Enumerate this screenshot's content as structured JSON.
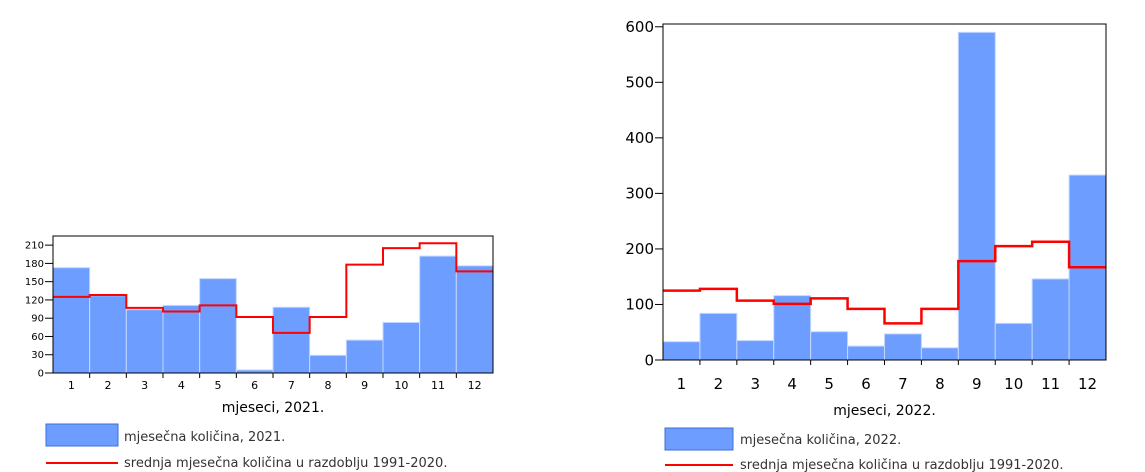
{
  "chart_data": [
    {
      "type": "bar",
      "categories": [
        "1",
        "2",
        "3",
        "4",
        "5",
        "6",
        "7",
        "8",
        "9",
        "10",
        "11",
        "12"
      ],
      "series": [
        {
          "name": "mjesečna količina, 2021.",
          "kind": "bar",
          "values": [
            173,
            127,
            104,
            111,
            155,
            5,
            108,
            29,
            54,
            83,
            192,
            176
          ]
        },
        {
          "name": "srednja mjesečna količina u razdoblju 1991-2020.",
          "kind": "step-line",
          "values": [
            125,
            128,
            107,
            101,
            111,
            92,
            66,
            92,
            178,
            205,
            213,
            167
          ]
        }
      ],
      "xlabel": "mjeseci, 2021.",
      "ylabel": "",
      "ylim": [
        0,
        225
      ],
      "yticks": [
        0,
        30,
        60,
        90,
        120,
        150,
        180,
        210
      ],
      "colors": {
        "bar": "#6d9eff",
        "bar_edge": "#c4d7ff",
        "line": "#ff0000"
      }
    },
    {
      "type": "bar",
      "categories": [
        "1",
        "2",
        "3",
        "4",
        "5",
        "6",
        "7",
        "8",
        "9",
        "10",
        "11",
        "12"
      ],
      "series": [
        {
          "name": "mjesečna količina, 2022.",
          "kind": "bar",
          "values": [
            33,
            84,
            35,
            116,
            51,
            25,
            47,
            22,
            590,
            66,
            146,
            333
          ]
        },
        {
          "name": "srednja mjesečna količina u razdoblju 1991-2020.",
          "kind": "step-line",
          "values": [
            125,
            128,
            107,
            101,
            111,
            92,
            66,
            92,
            178,
            205,
            213,
            167
          ]
        }
      ],
      "xlabel": "mjeseci, 2022.",
      "ylabel": "",
      "ylim": [
        0,
        605
      ],
      "yticks": [
        0,
        100,
        200,
        300,
        400,
        500,
        600
      ],
      "colors": {
        "bar": "#6d9eff",
        "bar_edge": "#c4d7ff",
        "line": "#ff0000"
      }
    }
  ]
}
